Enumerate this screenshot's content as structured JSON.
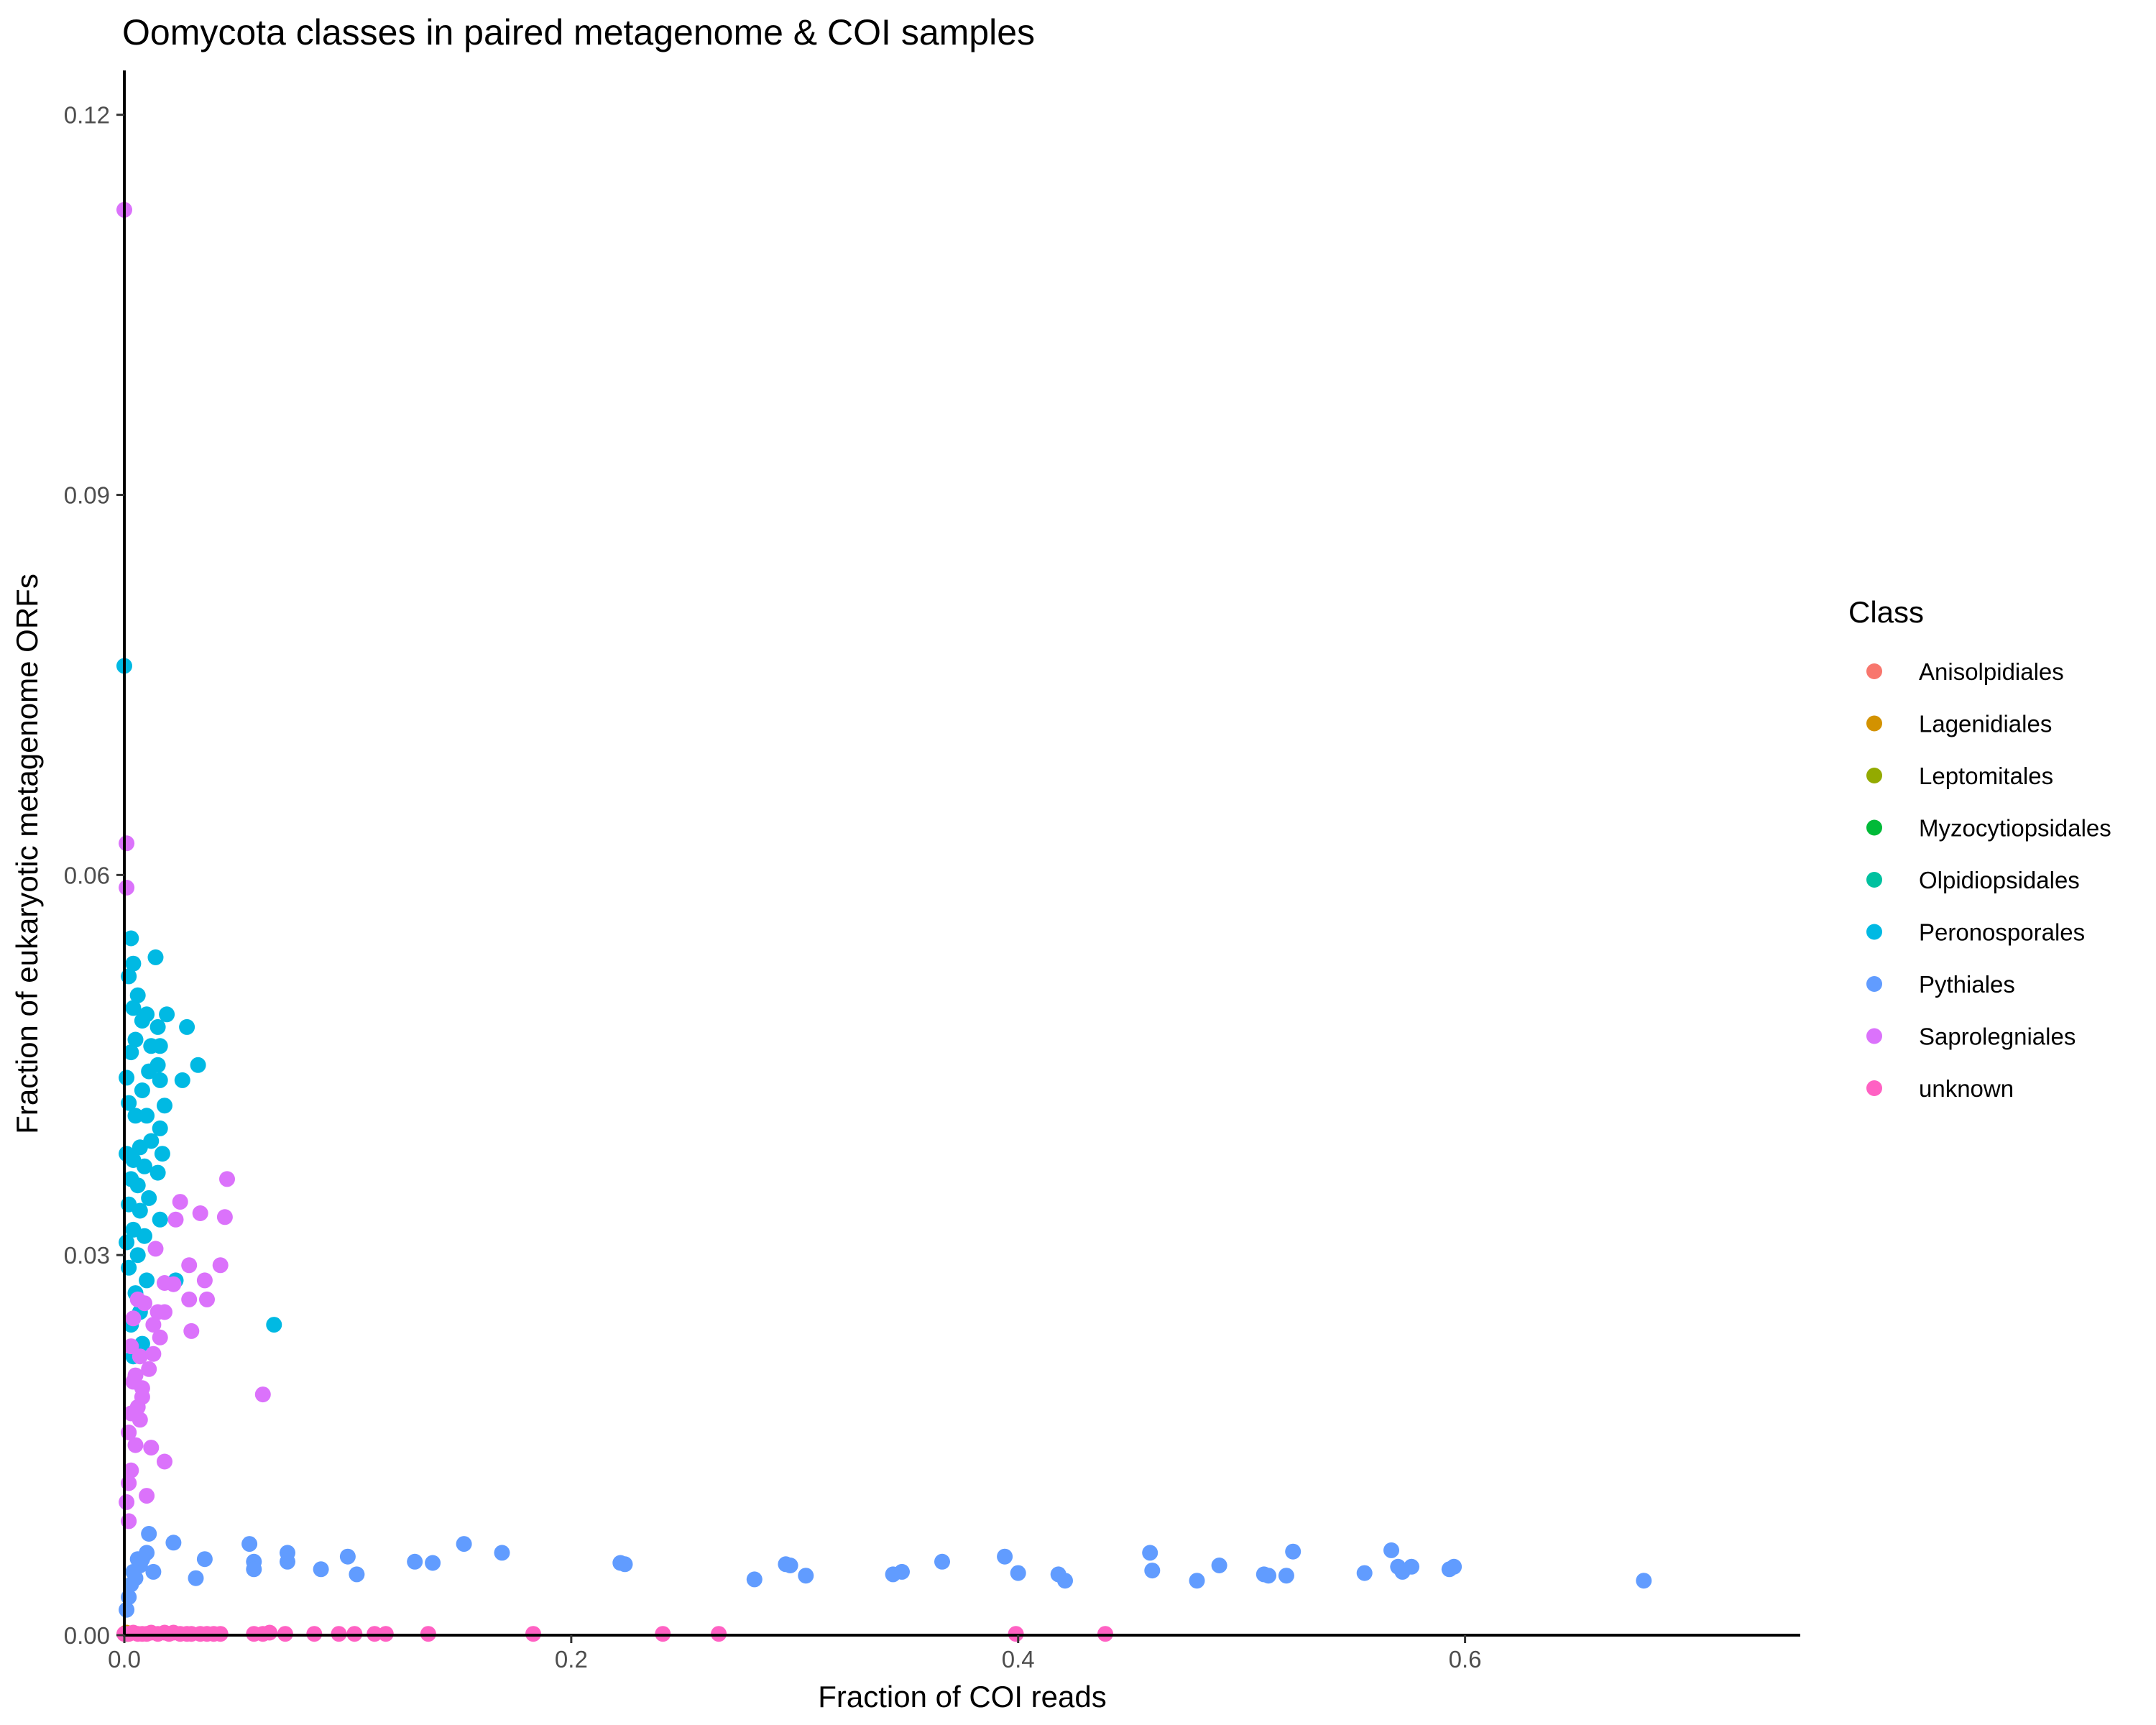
{
  "chart_data": {
    "type": "scatter",
    "title": "Oomycota classes in paired metagenome & COI samples",
    "xlabel": "Fraction of COI reads",
    "ylabel": "Fraction of eukaryotic metagenome ORFs",
    "xlim": [
      0,
      0.75
    ],
    "ylim": [
      0,
      0.1235
    ],
    "x_ticks": [
      {
        "value": 0.0,
        "label": "0.0"
      },
      {
        "value": 0.2,
        "label": "0.2"
      },
      {
        "value": 0.4,
        "label": "0.4"
      },
      {
        "value": 0.6,
        "label": "0.6"
      }
    ],
    "y_ticks": [
      {
        "value": 0.0,
        "label": "0.00"
      },
      {
        "value": 0.03,
        "label": "0.03"
      },
      {
        "value": 0.06,
        "label": "0.06"
      },
      {
        "value": 0.09,
        "label": "0.09"
      },
      {
        "value": 0.12,
        "label": "0.12"
      }
    ],
    "grid": false,
    "legend": {
      "title": "Class",
      "position": "right"
    },
    "series": [
      {
        "name": "Anisolpidiales",
        "color": "#F8766D",
        "points": [
          [
            0.0005,
            0.0001
          ],
          [
            0.001,
            0.0002
          ],
          [
            0.0015,
            0.0001
          ]
        ]
      },
      {
        "name": "Lagenidiales",
        "color": "#D39200",
        "points": [
          [
            0.0008,
            0.0002
          ],
          [
            0.0012,
            0.0001
          ]
        ]
      },
      {
        "name": "Leptomitales",
        "color": "#93AA00",
        "points": [
          [
            0.0006,
            0.0001
          ]
        ]
      },
      {
        "name": "Myzocytiopsidales",
        "color": "#00BA38",
        "points": [
          [
            0.0004,
            0.0001
          ]
        ]
      },
      {
        "name": "Olpidiopsidales",
        "color": "#00C19F",
        "points": [
          [
            0.0007,
            0.0001
          ]
        ]
      },
      {
        "name": "Peronosporales",
        "color": "#00B9E3",
        "points": [
          [
            0.0,
            0.0765
          ],
          [
            0.003,
            0.055
          ],
          [
            0.004,
            0.053
          ],
          [
            0.002,
            0.052
          ],
          [
            0.006,
            0.0505
          ],
          [
            0.004,
            0.0495
          ],
          [
            0.014,
            0.0535
          ],
          [
            0.01,
            0.049
          ],
          [
            0.019,
            0.049
          ],
          [
            0.028,
            0.048
          ],
          [
            0.015,
            0.048
          ],
          [
            0.008,
            0.0485
          ],
          [
            0.005,
            0.047
          ],
          [
            0.012,
            0.0465
          ],
          [
            0.016,
            0.0465
          ],
          [
            0.003,
            0.046
          ],
          [
            0.015,
            0.045
          ],
          [
            0.033,
            0.045
          ],
          [
            0.011,
            0.0445
          ],
          [
            0.016,
            0.0438
          ],
          [
            0.026,
            0.0438
          ],
          [
            0.008,
            0.043
          ],
          [
            0.002,
            0.042
          ],
          [
            0.018,
            0.0418
          ],
          [
            0.01,
            0.041
          ],
          [
            0.005,
            0.041
          ],
          [
            0.016,
            0.04
          ],
          [
            0.012,
            0.039
          ],
          [
            0.007,
            0.0385
          ],
          [
            0.017,
            0.038
          ],
          [
            0.004,
            0.0375
          ],
          [
            0.009,
            0.037
          ],
          [
            0.015,
            0.0365
          ],
          [
            0.003,
            0.036
          ],
          [
            0.006,
            0.0355
          ],
          [
            0.011,
            0.0345
          ],
          [
            0.002,
            0.034
          ],
          [
            0.007,
            0.0335
          ],
          [
            0.016,
            0.0328
          ],
          [
            0.004,
            0.032
          ],
          [
            0.009,
            0.0315
          ],
          [
            0.006,
            0.03
          ],
          [
            0.002,
            0.029
          ],
          [
            0.01,
            0.028
          ],
          [
            0.023,
            0.028
          ],
          [
            0.005,
            0.027
          ],
          [
            0.007,
            0.0255
          ],
          [
            0.003,
            0.0245
          ],
          [
            0.067,
            0.0245
          ],
          [
            0.008,
            0.023
          ],
          [
            0.004,
            0.022
          ],
          [
            0.001,
            0.038
          ],
          [
            0.001,
            0.044
          ],
          [
            0.001,
            0.031
          ]
        ]
      },
      {
        "name": "Pythiales",
        "color": "#619CFF",
        "points": [
          [
            0.001,
            0.002
          ],
          [
            0.002,
            0.003
          ],
          [
            0.003,
            0.004
          ],
          [
            0.004,
            0.005
          ],
          [
            0.005,
            0.0045
          ],
          [
            0.006,
            0.006
          ],
          [
            0.007,
            0.0055
          ],
          [
            0.008,
            0.006
          ],
          [
            0.01,
            0.0065
          ],
          [
            0.011,
            0.008
          ],
          [
            0.013,
            0.005
          ],
          [
            0.022,
            0.0073
          ],
          [
            0.032,
            0.0045
          ],
          [
            0.036,
            0.006
          ],
          [
            0.056,
            0.0072
          ],
          [
            0.058,
            0.0058
          ],
          [
            0.058,
            0.0052
          ],
          [
            0.073,
            0.0065
          ],
          [
            0.073,
            0.0058
          ],
          [
            0.088,
            0.0052
          ],
          [
            0.1,
            0.0062
          ],
          [
            0.104,
            0.0048
          ],
          [
            0.13,
            0.0058
          ],
          [
            0.138,
            0.0057
          ],
          [
            0.152,
            0.0072
          ],
          [
            0.169,
            0.0065
          ],
          [
            0.222,
            0.0057
          ],
          [
            0.224,
            0.0056
          ],
          [
            0.282,
            0.0044
          ],
          [
            0.296,
            0.0056
          ],
          [
            0.298,
            0.0055
          ],
          [
            0.305,
            0.0047
          ],
          [
            0.344,
            0.0048
          ],
          [
            0.348,
            0.005
          ],
          [
            0.366,
            0.0058
          ],
          [
            0.394,
            0.0062
          ],
          [
            0.4,
            0.0049
          ],
          [
            0.418,
            0.0048
          ],
          [
            0.421,
            0.0043
          ],
          [
            0.459,
            0.0065
          ],
          [
            0.46,
            0.0051
          ],
          [
            0.48,
            0.0043
          ],
          [
            0.49,
            0.0055
          ],
          [
            0.51,
            0.0048
          ],
          [
            0.512,
            0.0047
          ],
          [
            0.52,
            0.0047
          ],
          [
            0.523,
            0.0066
          ],
          [
            0.555,
            0.0049
          ],
          [
            0.567,
            0.0067
          ],
          [
            0.57,
            0.0054
          ],
          [
            0.572,
            0.005
          ],
          [
            0.576,
            0.0054
          ],
          [
            0.593,
            0.0052
          ],
          [
            0.595,
            0.0054
          ],
          [
            0.68,
            0.0043
          ]
        ]
      },
      {
        "name": "Saprolegniales",
        "color": "#DB72FB",
        "points": [
          [
            0.0,
            0.1125
          ],
          [
            0.001,
            0.0625
          ],
          [
            0.001,
            0.059
          ],
          [
            0.046,
            0.036
          ],
          [
            0.025,
            0.0342
          ],
          [
            0.034,
            0.0333
          ],
          [
            0.045,
            0.033
          ],
          [
            0.023,
            0.0328
          ],
          [
            0.014,
            0.0305
          ],
          [
            0.029,
            0.0292
          ],
          [
            0.043,
            0.0292
          ],
          [
            0.036,
            0.028
          ],
          [
            0.018,
            0.0278
          ],
          [
            0.022,
            0.0277
          ],
          [
            0.029,
            0.0265
          ],
          [
            0.037,
            0.0265
          ],
          [
            0.009,
            0.0262
          ],
          [
            0.015,
            0.0255
          ],
          [
            0.018,
            0.0255
          ],
          [
            0.013,
            0.0245
          ],
          [
            0.03,
            0.024
          ],
          [
            0.016,
            0.0235
          ],
          [
            0.013,
            0.0222
          ],
          [
            0.007,
            0.022
          ],
          [
            0.011,
            0.021
          ],
          [
            0.005,
            0.0205
          ],
          [
            0.004,
            0.02
          ],
          [
            0.062,
            0.019
          ],
          [
            0.008,
            0.0188
          ],
          [
            0.006,
            0.018
          ],
          [
            0.003,
            0.0175
          ],
          [
            0.007,
            0.017
          ],
          [
            0.002,
            0.016
          ],
          [
            0.012,
            0.0148
          ],
          [
            0.018,
            0.0137
          ],
          [
            0.003,
            0.013
          ],
          [
            0.002,
            0.012
          ],
          [
            0.01,
            0.011
          ],
          [
            0.001,
            0.0105
          ],
          [
            0.002,
            0.009
          ],
          [
            0.004,
            0.025
          ],
          [
            0.006,
            0.0265
          ],
          [
            0.003,
            0.0228
          ],
          [
            0.008,
            0.0195
          ],
          [
            0.005,
            0.015
          ]
        ]
      },
      {
        "name": "unknown",
        "color": "#FF61C3",
        "points": [
          [
            0.0,
            0.0001
          ],
          [
            0.002,
            0.0001
          ],
          [
            0.004,
            0.0002
          ],
          [
            0.006,
            0.0001
          ],
          [
            0.008,
            0.0001
          ],
          [
            0.01,
            0.0001
          ],
          [
            0.012,
            0.0002
          ],
          [
            0.015,
            0.0001
          ],
          [
            0.018,
            0.0002
          ],
          [
            0.02,
            0.0001
          ],
          [
            0.022,
            0.0002
          ],
          [
            0.025,
            0.0001
          ],
          [
            0.028,
            0.0001
          ],
          [
            0.03,
            0.0001
          ],
          [
            0.034,
            0.0001
          ],
          [
            0.037,
            0.0001
          ],
          [
            0.04,
            0.0001
          ],
          [
            0.043,
            0.0001
          ],
          [
            0.058,
            0.0001
          ],
          [
            0.062,
            0.0001
          ],
          [
            0.065,
            0.0002
          ],
          [
            0.072,
            0.0001
          ],
          [
            0.085,
            0.0001
          ],
          [
            0.096,
            0.0001
          ],
          [
            0.103,
            0.0001
          ],
          [
            0.112,
            0.0001
          ],
          [
            0.117,
            0.0001
          ],
          [
            0.136,
            0.0001
          ],
          [
            0.183,
            0.0001
          ],
          [
            0.241,
            0.0001
          ],
          [
            0.266,
            0.0001
          ],
          [
            0.399,
            0.0001
          ],
          [
            0.439,
            0.0001
          ]
        ]
      }
    ]
  }
}
